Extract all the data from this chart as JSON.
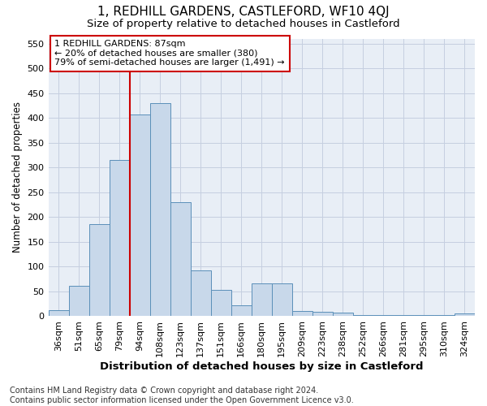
{
  "title": "1, REDHILL GARDENS, CASTLEFORD, WF10 4QJ",
  "subtitle": "Size of property relative to detached houses in Castleford",
  "xlabel": "Distribution of detached houses by size in Castleford",
  "ylabel": "Number of detached properties",
  "categories": [
    "36sqm",
    "51sqm",
    "65sqm",
    "79sqm",
    "94sqm",
    "108sqm",
    "123sqm",
    "137sqm",
    "151sqm",
    "166sqm",
    "180sqm",
    "195sqm",
    "209sqm",
    "223sqm",
    "238sqm",
    "252sqm",
    "266sqm",
    "281sqm",
    "295sqm",
    "310sqm",
    "324sqm"
  ],
  "bar_values": [
    12,
    60,
    185,
    315,
    407,
    430,
    230,
    92,
    53,
    22,
    65,
    65,
    10,
    9,
    7,
    2,
    2,
    1,
    1,
    1,
    5
  ],
  "bar_color": "#c8d8ea",
  "bar_edge_color": "#5b8fb9",
  "grid_color": "#c5cfe0",
  "background_color": "#e8eef6",
  "vline_color": "#cc0000",
  "annotation_text": "1 REDHILL GARDENS: 87sqm\n← 20% of detached houses are smaller (380)\n79% of semi-detached houses are larger (1,491) →",
  "annotation_box_facecolor": "#ffffff",
  "annotation_box_edgecolor": "#cc0000",
  "footnote": "Contains HM Land Registry data © Crown copyright and database right 2024.\nContains public sector information licensed under the Open Government Licence v3.0.",
  "ylim": [
    0,
    560
  ],
  "yticks": [
    0,
    50,
    100,
    150,
    200,
    250,
    300,
    350,
    400,
    450,
    500,
    550
  ],
  "title_fontsize": 11,
  "subtitle_fontsize": 9.5,
  "xlabel_fontsize": 9.5,
  "ylabel_fontsize": 8.5,
  "tick_fontsize": 8,
  "annotation_fontsize": 8,
  "footnote_fontsize": 7
}
